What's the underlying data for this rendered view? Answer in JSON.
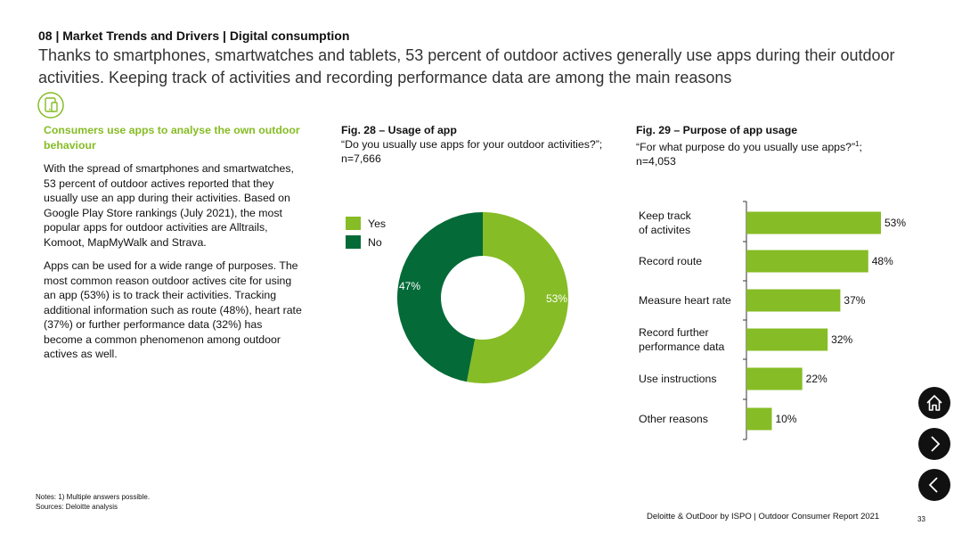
{
  "section_title": "08 | Market Trends and Drivers | Digital consumption",
  "headline": "Thanks to smartphones, smartwatches and tablets, 53 percent of outdoor actives generally use apps during their outdoor activities. Keeping track of activities and recording performance data are among the main reasons",
  "left_column": {
    "highlight": "Consumers use apps to analyse the own outdoor behaviour",
    "paragraph1": "With the spread of smartphones and smartwatches, 53 percent of outdoor actives reported that they usually use an app during their activities. Based on Google Play Store rankings (July 2021), the most popular apps for outdoor activities are Alltrails, Komoot, MapMyWalk and Strava.",
    "paragraph2": "Apps can be used for a wide range of purposes. The most common reason outdoor actives cite for using an app (53%) is to track their activities. Tracking additional information such as route (48%), heart rate (37%) or further performance data (32%) has become a common phenomenon among outdoor actives as well."
  },
  "fig28": {
    "title": "Fig. 28 – Usage of app",
    "question": "“Do you usually use apps for your outdoor activities?”;",
    "sample": "n=7,666"
  },
  "fig29": {
    "title": "Fig. 29 – Purpose of app usage",
    "question": "“For what purpose do you usually use apps?”",
    "footnote_mark": "1",
    "question_end": ";",
    "sample": "n=4,053"
  },
  "colors": {
    "light_green": "#86bc25",
    "dark_green": "#046a38",
    "text": "#111111"
  },
  "chart_data": [
    {
      "type": "pie",
      "variant": "donut",
      "title": "Fig. 28 – Usage of app",
      "categories": [
        "Yes",
        "No"
      ],
      "values": [
        53,
        47
      ],
      "labels": [
        "53%",
        "47%"
      ],
      "legend": "left"
    },
    {
      "type": "bar",
      "orientation": "horizontal",
      "title": "Fig. 29 – Purpose of app usage",
      "categories": [
        [
          "Keep track",
          "of activites"
        ],
        [
          "Record route"
        ],
        [
          "Measure heart rate"
        ],
        [
          "Record further",
          "performance data"
        ],
        [
          "Use instructions"
        ],
        [
          "Other reasons"
        ]
      ],
      "values": [
        53,
        48,
        37,
        32,
        22,
        10
      ],
      "labels": [
        "53%",
        "48%",
        "37%",
        "32%",
        "22%",
        "10%"
      ],
      "xlim": [
        0,
        53
      ]
    }
  ],
  "notes": {
    "line1": "Notes: 1) Multiple answers possible.",
    "line2": "Sources: Deloitte analysis"
  },
  "footer": "Deloitte & OutDoor by ISPO | Outdoor Consumer Report 2021",
  "page_number": "33",
  "nav": {
    "home_icon": "home-icon",
    "next_icon": "chevron-right-icon",
    "prev_icon": "chevron-left-icon"
  }
}
